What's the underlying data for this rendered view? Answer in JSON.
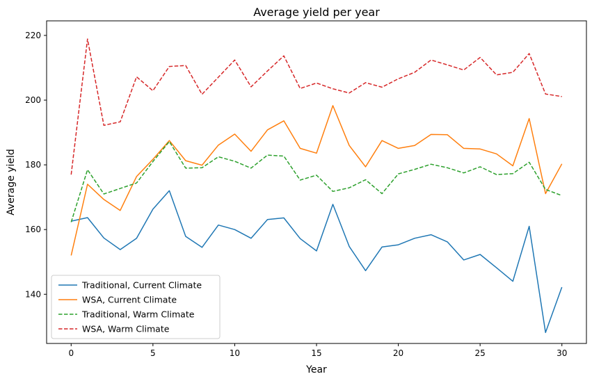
{
  "chart_data": {
    "type": "line",
    "title": "Average yield per year",
    "xlabel": "Year",
    "ylabel": "Average yield",
    "xlim": [
      -1.5,
      31.5
    ],
    "ylim": [
      124.8,
      224.5
    ],
    "xticks": [
      0,
      5,
      10,
      15,
      20,
      25,
      30
    ],
    "yticks": [
      140,
      160,
      180,
      200,
      220
    ],
    "grid": false,
    "legend_position": "lower-left",
    "x": [
      0,
      1,
      2,
      3,
      4,
      5,
      6,
      7,
      8,
      9,
      10,
      11,
      12,
      13,
      14,
      15,
      16,
      17,
      18,
      19,
      20,
      21,
      22,
      23,
      24,
      25,
      26,
      27,
      28,
      29,
      30
    ],
    "series": [
      {
        "name": "Traditional, Current Climate",
        "color": "#1f77b4",
        "dash": "solid",
        "values": [
          162.6,
          163.7,
          157.4,
          153.8,
          157.3,
          166.3,
          172.0,
          157.9,
          154.5,
          161.4,
          160.0,
          157.3,
          163.1,
          163.6,
          157.2,
          153.4,
          167.8,
          154.8,
          147.3,
          154.6,
          155.3,
          157.3,
          158.4,
          156.2,
          150.6,
          152.3,
          148.2,
          144.0,
          161.0,
          128.2,
          142.2
        ]
      },
      {
        "name": "WSA, Current Climate",
        "color": "#ff7f0e",
        "dash": "solid",
        "values": [
          152.0,
          174.0,
          169.3,
          165.9,
          176.4,
          181.7,
          187.5,
          181.3,
          179.9,
          186.1,
          189.5,
          184.2,
          190.8,
          193.6,
          185.1,
          183.6,
          198.3,
          186.0,
          179.4,
          187.5,
          185.1,
          186.0,
          189.4,
          189.3,
          185.1,
          184.9,
          183.4,
          179.7,
          194.3,
          171.1,
          180.3
        ]
      },
      {
        "name": "Traditional, Warm Climate",
        "color": "#2ca02c",
        "dash": "dashed",
        "values": [
          162.3,
          178.5,
          171.0,
          172.7,
          174.4,
          181.0,
          187.2,
          179.0,
          179.1,
          182.5,
          181.1,
          179.0,
          183.0,
          182.7,
          175.3,
          176.8,
          171.8,
          172.9,
          175.4,
          171.1,
          177.2,
          178.6,
          180.2,
          179.1,
          177.5,
          179.4,
          177.0,
          177.3,
          180.8,
          172.4,
          170.5
        ]
      },
      {
        "name": "WSA, Warm Climate",
        "color": "#d62728",
        "dash": "dashed",
        "values": [
          177.0,
          218.9,
          192.2,
          193.3,
          207.2,
          202.9,
          210.4,
          210.7,
          201.8,
          207.1,
          212.4,
          204.1,
          209.0,
          213.7,
          203.6,
          205.3,
          203.5,
          202.2,
          205.4,
          204.0,
          206.6,
          208.6,
          212.4,
          210.9,
          209.3,
          213.2,
          207.8,
          208.6,
          214.4,
          201.9,
          201.1
        ]
      }
    ]
  }
}
